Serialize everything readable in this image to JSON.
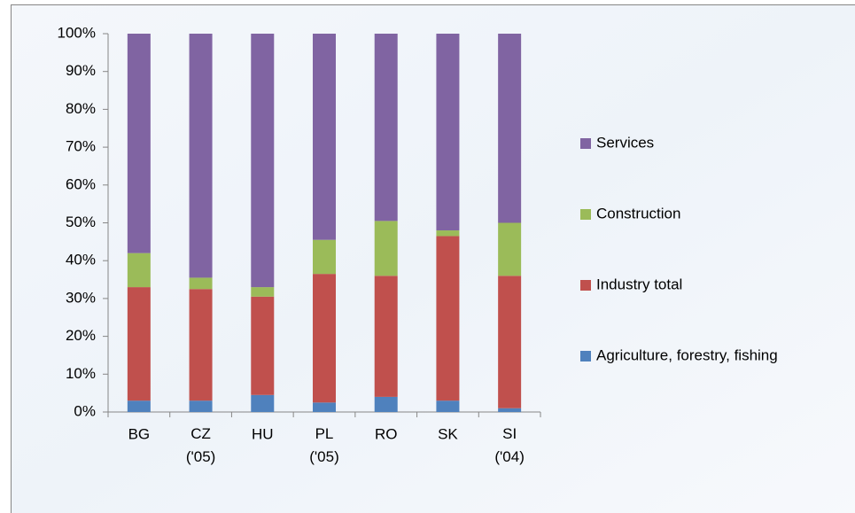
{
  "chart_data": {
    "type": "stacked_bar_percent",
    "categories": [
      "BG",
      "CZ ('05)",
      "HU",
      "PL ('05)",
      "RO",
      "SK",
      "SI ('04)"
    ],
    "series": [
      {
        "name": "Agriculture, forestry, fishing",
        "color": "#4f81bd",
        "values": [
          3,
          3,
          4.5,
          2.5,
          4,
          3,
          1
        ]
      },
      {
        "name": "Industry total",
        "color": "#c0504d",
        "values": [
          30,
          29.5,
          26,
          34,
          32,
          43.5,
          35
        ]
      },
      {
        "name": "Construction",
        "color": "#9bbb59",
        "values": [
          9,
          3,
          2.5,
          9,
          14.5,
          1.5,
          14
        ]
      },
      {
        "name": "Services",
        "color": "#8064a2",
        "values": [
          58,
          64.5,
          67,
          54.5,
          49.5,
          52,
          50
        ]
      }
    ],
    "ylim": [
      0,
      100
    ],
    "yticks": [
      {
        "value": 0,
        "label": "0%"
      },
      {
        "value": 10,
        "label": "10%"
      },
      {
        "value": 20,
        "label": "20%"
      },
      {
        "value": 30,
        "label": "30%"
      },
      {
        "value": 40,
        "label": "40%"
      },
      {
        "value": 50,
        "label": "50%"
      },
      {
        "value": 60,
        "label": "60%"
      },
      {
        "value": 70,
        "label": "70%"
      },
      {
        "value": 80,
        "label": "80%"
      },
      {
        "value": 90,
        "label": "90%"
      },
      {
        "value": 100,
        "label": "100%"
      }
    ],
    "grid": false,
    "legend": "right"
  }
}
